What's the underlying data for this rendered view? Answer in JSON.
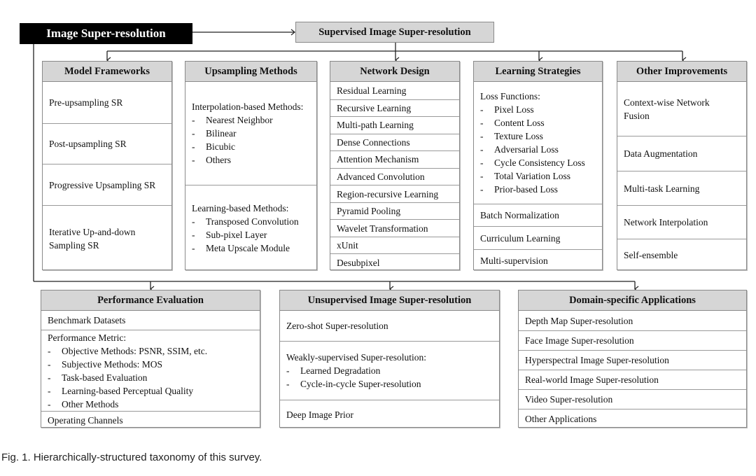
{
  "root": "Image Super-resolution",
  "supervised": "Supervised Image Super-resolution",
  "columns": [
    {
      "title": "Model Frameworks",
      "sections": [
        {
          "items": [
            {
              "t": "Pre-upsampling SR"
            }
          ]
        },
        {
          "items": [
            {
              "t": "Post-upsampling SR"
            }
          ]
        },
        {
          "items": [
            {
              "t": "Progressive Upsampling SR"
            }
          ]
        },
        {
          "items": [
            {
              "t": "Iterative Up-and-down"
            },
            {
              "t": "Sampling SR"
            }
          ]
        }
      ]
    },
    {
      "title": "Upsampling Methods",
      "sections": [
        {
          "items": [
            {
              "t": "Interpolation-based Methods:"
            },
            {
              "t": "Nearest Neighbor",
              "sub": true
            },
            {
              "t": "Bilinear",
              "sub": true
            },
            {
              "t": "Bicubic",
              "sub": true
            },
            {
              "t": "Others",
              "sub": true
            }
          ]
        },
        {
          "items": [
            {
              "t": "Learning-based Methods:"
            },
            {
              "t": "Transposed Convolution",
              "sub": true
            },
            {
              "t": "Sub-pixel Layer",
              "sub": true
            },
            {
              "t": "Meta Upscale Module",
              "sub": true
            }
          ]
        }
      ]
    },
    {
      "title": "Network Design",
      "sections": [
        {
          "items": [
            {
              "t": "Residual Learning"
            }
          ]
        },
        {
          "items": [
            {
              "t": "Recursive Learning"
            }
          ]
        },
        {
          "items": [
            {
              "t": "Multi-path Learning"
            }
          ]
        },
        {
          "items": [
            {
              "t": "Dense Connections"
            }
          ]
        },
        {
          "items": [
            {
              "t": "Attention Mechanism"
            }
          ]
        },
        {
          "items": [
            {
              "t": "Advanced Convolution"
            }
          ]
        },
        {
          "items": [
            {
              "t": "Region-recursive Learning"
            }
          ]
        },
        {
          "items": [
            {
              "t": "Pyramid Pooling"
            }
          ]
        },
        {
          "items": [
            {
              "t": "Wavelet Transformation"
            }
          ]
        },
        {
          "items": [
            {
              "t": "xUnit"
            }
          ]
        },
        {
          "items": [
            {
              "t": "Desubpixel"
            }
          ]
        }
      ]
    },
    {
      "title": "Learning Strategies",
      "sections": [
        {
          "items": [
            {
              "t": "Loss Functions:"
            },
            {
              "t": "Pixel Loss",
              "sub": true
            },
            {
              "t": "Content Loss",
              "sub": true
            },
            {
              "t": "Texture Loss",
              "sub": true
            },
            {
              "t": "Adversarial Loss",
              "sub": true
            },
            {
              "t": "Cycle Consistency Loss",
              "sub": true
            },
            {
              "t": "Total Variation Loss",
              "sub": true
            },
            {
              "t": "Prior-based Loss",
              "sub": true
            }
          ]
        },
        {
          "items": [
            {
              "t": "Batch Normalization"
            }
          ]
        },
        {
          "items": [
            {
              "t": "Curriculum Learning"
            }
          ]
        },
        {
          "items": [
            {
              "t": "Multi-supervision"
            }
          ]
        }
      ]
    },
    {
      "title": "Other Improvements",
      "sections": [
        {
          "items": [
            {
              "t": "Context-wise Network"
            },
            {
              "t": "Fusion"
            }
          ]
        },
        {
          "items": [
            {
              "t": "Data Augmentation"
            }
          ]
        },
        {
          "items": [
            {
              "t": "Multi-task Learning"
            }
          ]
        },
        {
          "items": [
            {
              "t": "Network Interpolation"
            }
          ]
        },
        {
          "items": [
            {
              "t": "Self-ensemble"
            }
          ]
        }
      ]
    }
  ],
  "bottom": [
    {
      "title": "Performance Evaluation",
      "sections": [
        {
          "items": [
            {
              "t": "Benchmark Datasets"
            }
          ]
        },
        {
          "items": [
            {
              "t": "Performance Metric:"
            },
            {
              "t": "Objective Methods: PSNR, SSIM, etc.",
              "sub": true
            },
            {
              "t": "Subjective Methods: MOS",
              "sub": true
            },
            {
              "t": "Task-based Evaluation",
              "sub": true
            },
            {
              "t": "Learning-based Perceptual Quality",
              "sub": true
            },
            {
              "t": "Other Methods",
              "sub": true
            }
          ]
        },
        {
          "items": [
            {
              "t": "Operating Channels"
            }
          ]
        }
      ]
    },
    {
      "title": "Unsupervised Image Super-resolution",
      "sections": [
        {
          "items": [
            {
              "t": "Zero-shot Super-resolution"
            }
          ]
        },
        {
          "items": [
            {
              "t": "Weakly-supervised Super-resolution:"
            },
            {
              "t": "Learned Degradation",
              "sub": true
            },
            {
              "t": "Cycle-in-cycle Super-resolution",
              "sub": true
            }
          ]
        },
        {
          "items": [
            {
              "t": "Deep Image Prior"
            }
          ]
        }
      ]
    },
    {
      "title": "Domain-specific Applications",
      "sections": [
        {
          "items": [
            {
              "t": "Depth Map Super-resolution"
            }
          ]
        },
        {
          "items": [
            {
              "t": "Face Image Super-resolution"
            }
          ]
        },
        {
          "items": [
            {
              "t": "Hyperspectral Image Super-resolution"
            }
          ]
        },
        {
          "items": [
            {
              "t": "Real-world Image Super-resolution"
            }
          ]
        },
        {
          "items": [
            {
              "t": "Video Super-resolution"
            }
          ]
        },
        {
          "items": [
            {
              "t": "Other Applications"
            }
          ]
        }
      ]
    }
  ],
  "caption": "Fig. 1.  Hierarchically-structured taxonomy of this survey."
}
